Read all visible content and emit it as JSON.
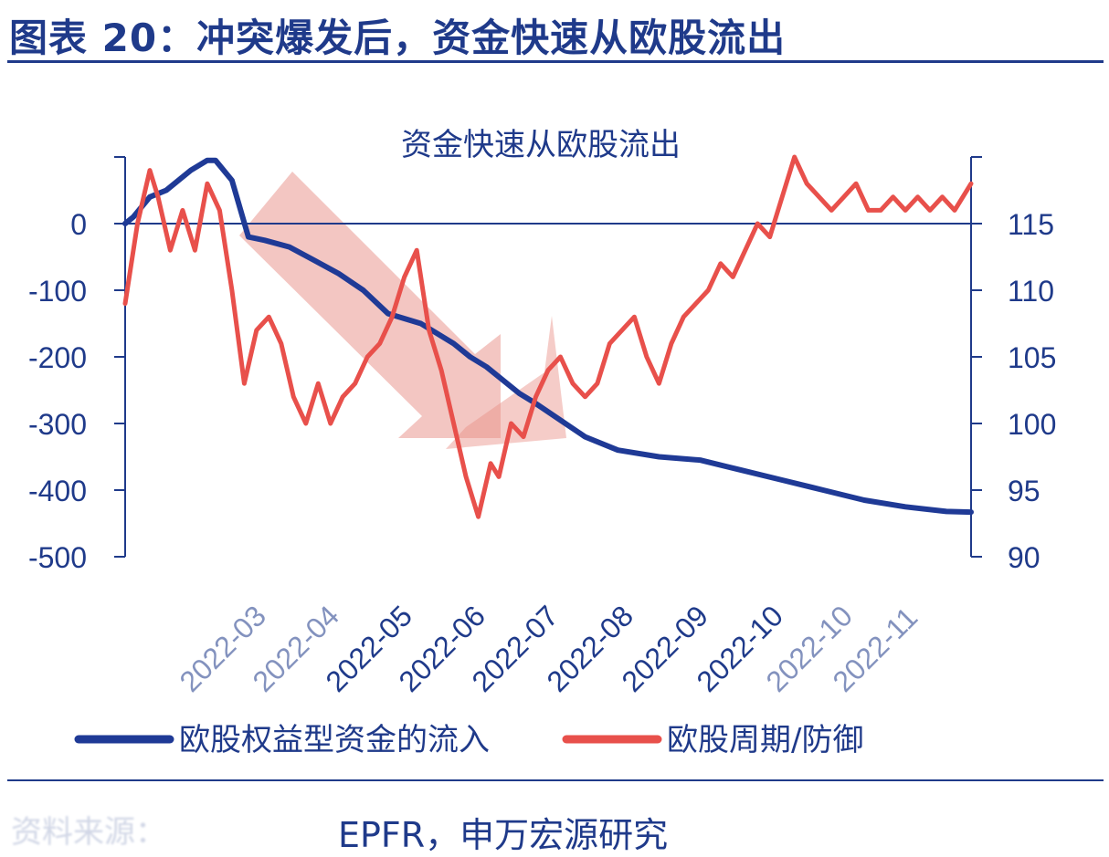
{
  "figure": {
    "title": "图表 20：冲突爆发后，资金快速从欧股流出",
    "source": "EPFR，申万宏源研究",
    "source_note": "资料来源："
  },
  "colors": {
    "blue": "#1f3a96",
    "red": "#e8504b",
    "arrow": "#e88d86",
    "text": "#1f3a8a",
    "axis": "#1f3a8a"
  },
  "chart_data": {
    "type": "line",
    "title": "资金快速从欧股流出",
    "left_axis": {
      "ticks": [
        0,
        -100,
        -200,
        -300,
        -400,
        -500
      ],
      "ylim": [
        -500,
        100
      ]
    },
    "right_axis": {
      "ticks": [
        90,
        95,
        100,
        105,
        110,
        115
      ],
      "tick_labels": [
        "90",
        "95",
        "100",
        "105",
        "110",
        "115"
      ],
      "ylim": [
        90,
        120
      ]
    },
    "x_ticks": [
      "2022-03",
      "2022-04",
      "2022-05",
      "2022-06",
      "2022-07",
      "2022-08",
      "2022-09",
      "2022-10",
      "2022-10",
      "2022-11"
    ],
    "x_tick_positions": [
      0,
      1,
      2,
      3,
      4,
      5,
      6,
      7,
      8,
      9
    ],
    "series": [
      {
        "name": "欧股权益型资金的流入",
        "axis": "left",
        "x": [
          0,
          0.1,
          0.3,
          0.5,
          0.8,
          1.0,
          1.1,
          1.3,
          1.5,
          1.7,
          2.0,
          2.3,
          2.6,
          2.9,
          3.2,
          3.6,
          4.0,
          4.2,
          4.4,
          4.6,
          4.8,
          5.0,
          5.3,
          5.6,
          6.0,
          6.5,
          7.0,
          7.5,
          8.0,
          8.5,
          9.0,
          9.5,
          10.0,
          10.3
        ],
        "values": [
          0,
          10,
          40,
          50,
          80,
          95,
          95,
          65,
          -20,
          -25,
          -35,
          -55,
          -75,
          -100,
          -135,
          -150,
          -180,
          -200,
          -215,
          -235,
          -255,
          -270,
          -295,
          -320,
          -340,
          -350,
          -355,
          -370,
          -385,
          -400,
          -415,
          -425,
          -432,
          -433
        ]
      },
      {
        "name": "欧股周期/防御",
        "axis": "right",
        "x": [
          0,
          0.15,
          0.3,
          0.4,
          0.55,
          0.7,
          0.85,
          1.0,
          1.15,
          1.3,
          1.45,
          1.6,
          1.75,
          1.9,
          2.05,
          2.2,
          2.35,
          2.5,
          2.65,
          2.8,
          2.95,
          3.1,
          3.25,
          3.4,
          3.55,
          3.7,
          3.85,
          4.0,
          4.15,
          4.3,
          4.45,
          4.55,
          4.7,
          4.85,
          5.0,
          5.15,
          5.3,
          5.45,
          5.6,
          5.75,
          5.9,
          6.05,
          6.2,
          6.35,
          6.5,
          6.65,
          6.8,
          6.95,
          7.1,
          7.25,
          7.4,
          7.55,
          7.7,
          7.85,
          8.0,
          8.15,
          8.3,
          8.45,
          8.6,
          8.75,
          8.9,
          9.05,
          9.2,
          9.35,
          9.5,
          9.65,
          9.8,
          9.95,
          10.1,
          10.3
        ],
        "values": [
          109,
          115,
          119,
          117,
          113,
          116,
          113,
          118,
          116,
          110,
          103,
          107,
          108,
          106,
          102,
          100,
          103,
          100,
          102,
          103,
          105,
          106,
          108,
          111,
          113,
          107,
          104,
          100,
          96,
          93,
          97,
          96,
          100,
          99,
          102,
          104,
          105,
          103,
          102,
          103,
          106,
          107,
          108,
          105,
          103,
          106,
          108,
          109,
          110,
          112,
          111,
          113,
          115,
          114,
          117,
          120,
          118,
          117,
          116,
          117,
          118,
          116,
          116,
          117,
          116,
          117,
          116,
          117,
          116,
          118
        ]
      }
    ],
    "legend": [
      {
        "label": "欧股权益型资金的流入",
        "color": "#1f3a96"
      },
      {
        "label": "欧股周期/防御",
        "color": "#e8504b"
      }
    ],
    "legend_position": "bottom",
    "grid": false
  }
}
